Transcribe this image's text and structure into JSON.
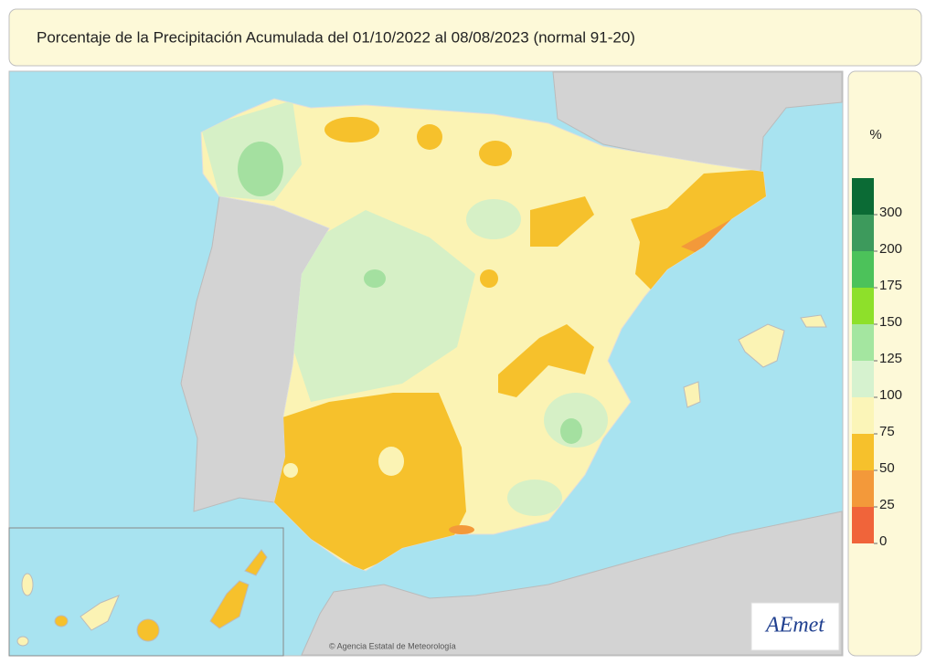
{
  "title": "Porcentaje de la Precipitación Acumulada del 01/10/2022 al 08/08/2023 (normal 91-20)",
  "legend": {
    "unit": "%",
    "ticks": [
      300,
      200,
      175,
      150,
      125,
      100,
      75,
      50,
      25,
      0
    ],
    "colors": [
      "#0b6b35",
      "#3d9a5c",
      "#4cc25a",
      "#8ee02a",
      "#a4e6a0",
      "#d6f2cf",
      "#fbf5b8",
      "#f6c12c",
      "#f3993a",
      "#f0643a"
    ]
  },
  "logo": "AEmet",
  "credit": "© Agencia Estatal de Meteorología"
}
